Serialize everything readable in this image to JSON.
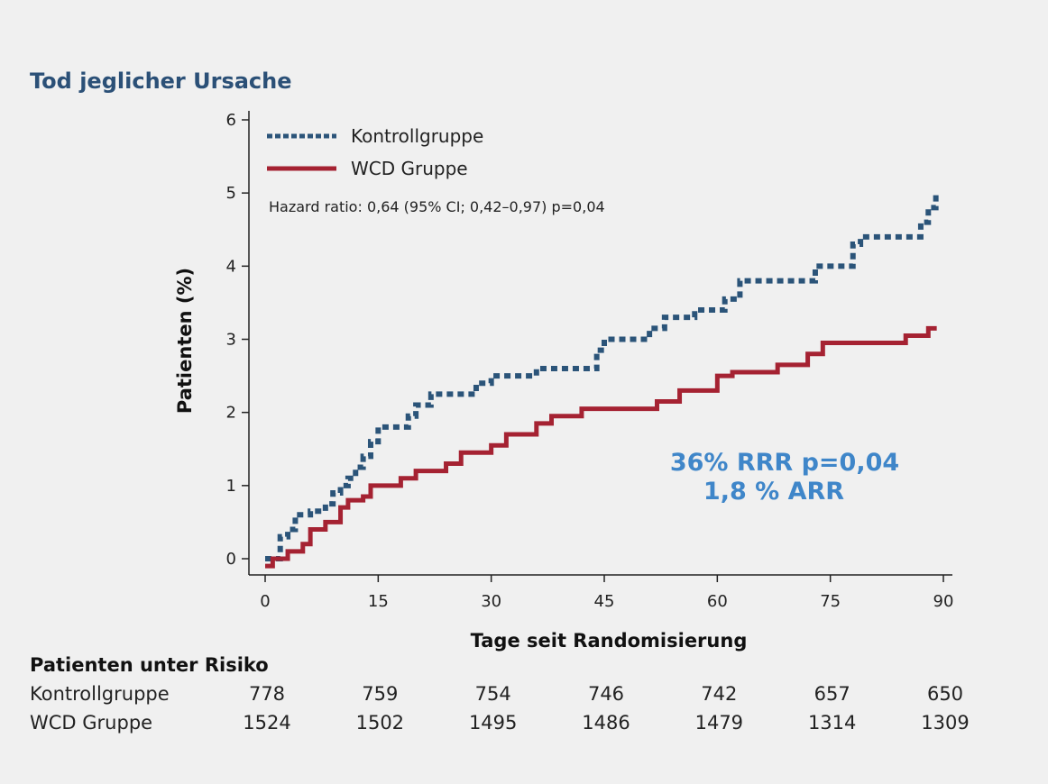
{
  "colors": {
    "title": "#2b5077",
    "kontroll": "#2b5479",
    "wcd": "#a52232",
    "annotation": "#3f86c9",
    "background": "#f0f0f0"
  },
  "chart_data": {
    "type": "line",
    "step": true,
    "title": "Tod jeglicher Ursache",
    "xlabel": "Tage seit Randomisierung",
    "ylabel": "Patienten (%)",
    "xlim": [
      0,
      90
    ],
    "ylim": [
      0,
      6
    ],
    "xticks": [
      "0",
      "15",
      "30",
      "45",
      "60",
      "75",
      "90"
    ],
    "yticks": [
      "0",
      "1",
      "2",
      "3",
      "4",
      "5",
      "6"
    ],
    "grid": false,
    "legend_position": "top-left",
    "hazard_text": "Hazard ratio: 0,64 (95% CI; 0,42–0,97) p=0,04",
    "annotations": [
      "36% RRR p=0,04",
      "1,8 % ARR"
    ],
    "series": [
      {
        "name": "Kontrollgruppe",
        "style": "dotted",
        "x": [
          0,
          2,
          3,
          4,
          6,
          8,
          9,
          10,
          11,
          12,
          13,
          14,
          15,
          19,
          20,
          22,
          28,
          30,
          36,
          44,
          45,
          51,
          53,
          57,
          61,
          63,
          73,
          78,
          79,
          87,
          88,
          89
        ],
        "y": [
          0,
          0.3,
          0.4,
          0.6,
          0.65,
          0.75,
          0.9,
          1.0,
          1.1,
          1.25,
          1.4,
          1.6,
          1.8,
          1.95,
          2.1,
          2.25,
          2.4,
          2.5,
          2.6,
          2.85,
          3.0,
          3.15,
          3.3,
          3.4,
          3.55,
          3.8,
          4.0,
          4.3,
          4.4,
          4.6,
          4.8,
          5.0
        ]
      },
      {
        "name": "WCD Gruppe",
        "style": "solid",
        "x": [
          0,
          1,
          3,
          5,
          6,
          8,
          10,
          11,
          13,
          14,
          18,
          20,
          24,
          26,
          30,
          32,
          36,
          38,
          42,
          52,
          55,
          60,
          62,
          68,
          72,
          74,
          85,
          88,
          89
        ],
        "y": [
          -0.1,
          0,
          0.1,
          0.2,
          0.4,
          0.5,
          0.7,
          0.8,
          0.85,
          1.0,
          1.1,
          1.2,
          1.3,
          1.45,
          1.55,
          1.7,
          1.85,
          1.95,
          2.05,
          2.15,
          2.3,
          2.5,
          2.55,
          2.65,
          2.8,
          2.95,
          3.05,
          3.15,
          3.15
        ]
      }
    ]
  },
  "risk_table": {
    "heading": "Patienten unter Risiko",
    "rows": [
      {
        "label": "Kontrollgruppe",
        "values": [
          "778",
          "759",
          "754",
          "746",
          "742",
          "657",
          "650"
        ]
      },
      {
        "label": "WCD Gruppe",
        "values": [
          "1524",
          "1502",
          "1495",
          "1486",
          "1479",
          "1314",
          "1309"
        ]
      }
    ]
  }
}
